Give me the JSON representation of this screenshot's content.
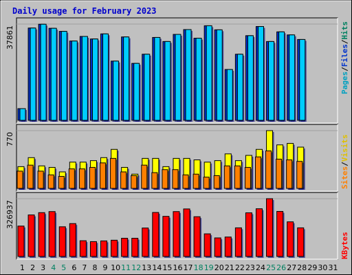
{
  "chart_data": {
    "type": "bar",
    "title": "Daily usage for February 2023",
    "days": [
      "1",
      "2",
      "3",
      "4",
      "5",
      "6",
      "7",
      "8",
      "9",
      "10",
      "11",
      "12",
      "13",
      "14",
      "15",
      "16",
      "17",
      "18",
      "19",
      "20",
      "21",
      "22",
      "23",
      "24",
      "25",
      "26",
      "27",
      "28",
      "29",
      "30",
      "31"
    ],
    "weekend_days": [
      4,
      5,
      11,
      12,
      18,
      19,
      25,
      26
    ],
    "panels": [
      {
        "id": "hits_files_pages",
        "ymax_label": "37861",
        "ymax": 37861,
        "legend": [
          "Pages",
          "/",
          "Files",
          "/",
          "Hits"
        ],
        "series": [
          {
            "name": "Pages",
            "color": "#00a0c0",
            "values": []
          },
          {
            "name": "Files",
            "color": "#0033cc",
            "values": [
              4600,
              36300,
              37800,
              36200,
              35000,
              31200,
              33000,
              32000,
              34000,
              23300,
              32800,
              22400,
              26000,
              32600,
              31000,
              33800,
              35700,
              32300,
              37200,
              35600,
              20000,
              26000,
              33300,
              36900,
              31000,
              34800,
              33600,
              31800
            ]
          },
          {
            "name": "Hits",
            "color": "#00ccff",
            "values": [
              4600,
              36300,
              37800,
              36200,
              35000,
              31200,
              33000,
              32000,
              34000,
              23300,
              32800,
              22400,
              26000,
              32600,
              31000,
              33800,
              35700,
              32300,
              37200,
              35600,
              20000,
              26000,
              33300,
              36900,
              31000,
              34800,
              33600,
              31800
            ]
          }
        ]
      },
      {
        "id": "visits_sites",
        "ymax_label": "770",
        "ymax": 770,
        "legend": [
          "Sites",
          "/",
          "Visits"
        ],
        "series": [
          {
            "name": "Visits",
            "color": "#ffff00",
            "values": [
              290,
              410,
              300,
              280,
              220,
              350,
              350,
              370,
              410,
              520,
              280,
              190,
              400,
              400,
              290,
              400,
              400,
              380,
              350,
              370,
              460,
              370,
              440,
              520,
              770,
              580,
              600,
              550
            ]
          },
          {
            "name": "Sites",
            "color": "#ff8000",
            "values": [
              230,
              310,
              230,
              180,
              160,
              260,
              260,
              280,
              340,
              400,
              220,
              170,
              310,
              210,
              250,
              250,
              180,
              190,
              150,
              170,
              300,
              300,
              280,
              420,
              500,
              390,
              380,
              360
            ]
          }
        ]
      },
      {
        "id": "kbytes",
        "ymax_label": "326937",
        "ymax": 326937,
        "legend": [
          "KBytes"
        ],
        "series": [
          {
            "name": "KBytes",
            "color": "#ff0000",
            "values": [
              172000,
              235000,
              248000,
              254000,
              168000,
              186000,
              89000,
              84000,
              88000,
              92000,
              103000,
              103000,
              161000,
              249000,
              227000,
              254000,
              269000,
              225000,
              128000,
              105000,
              110000,
              162000,
              247000,
              270000,
              327000,
              255000,
              196000,
              162000
            ]
          }
        ]
      }
    ]
  }
}
